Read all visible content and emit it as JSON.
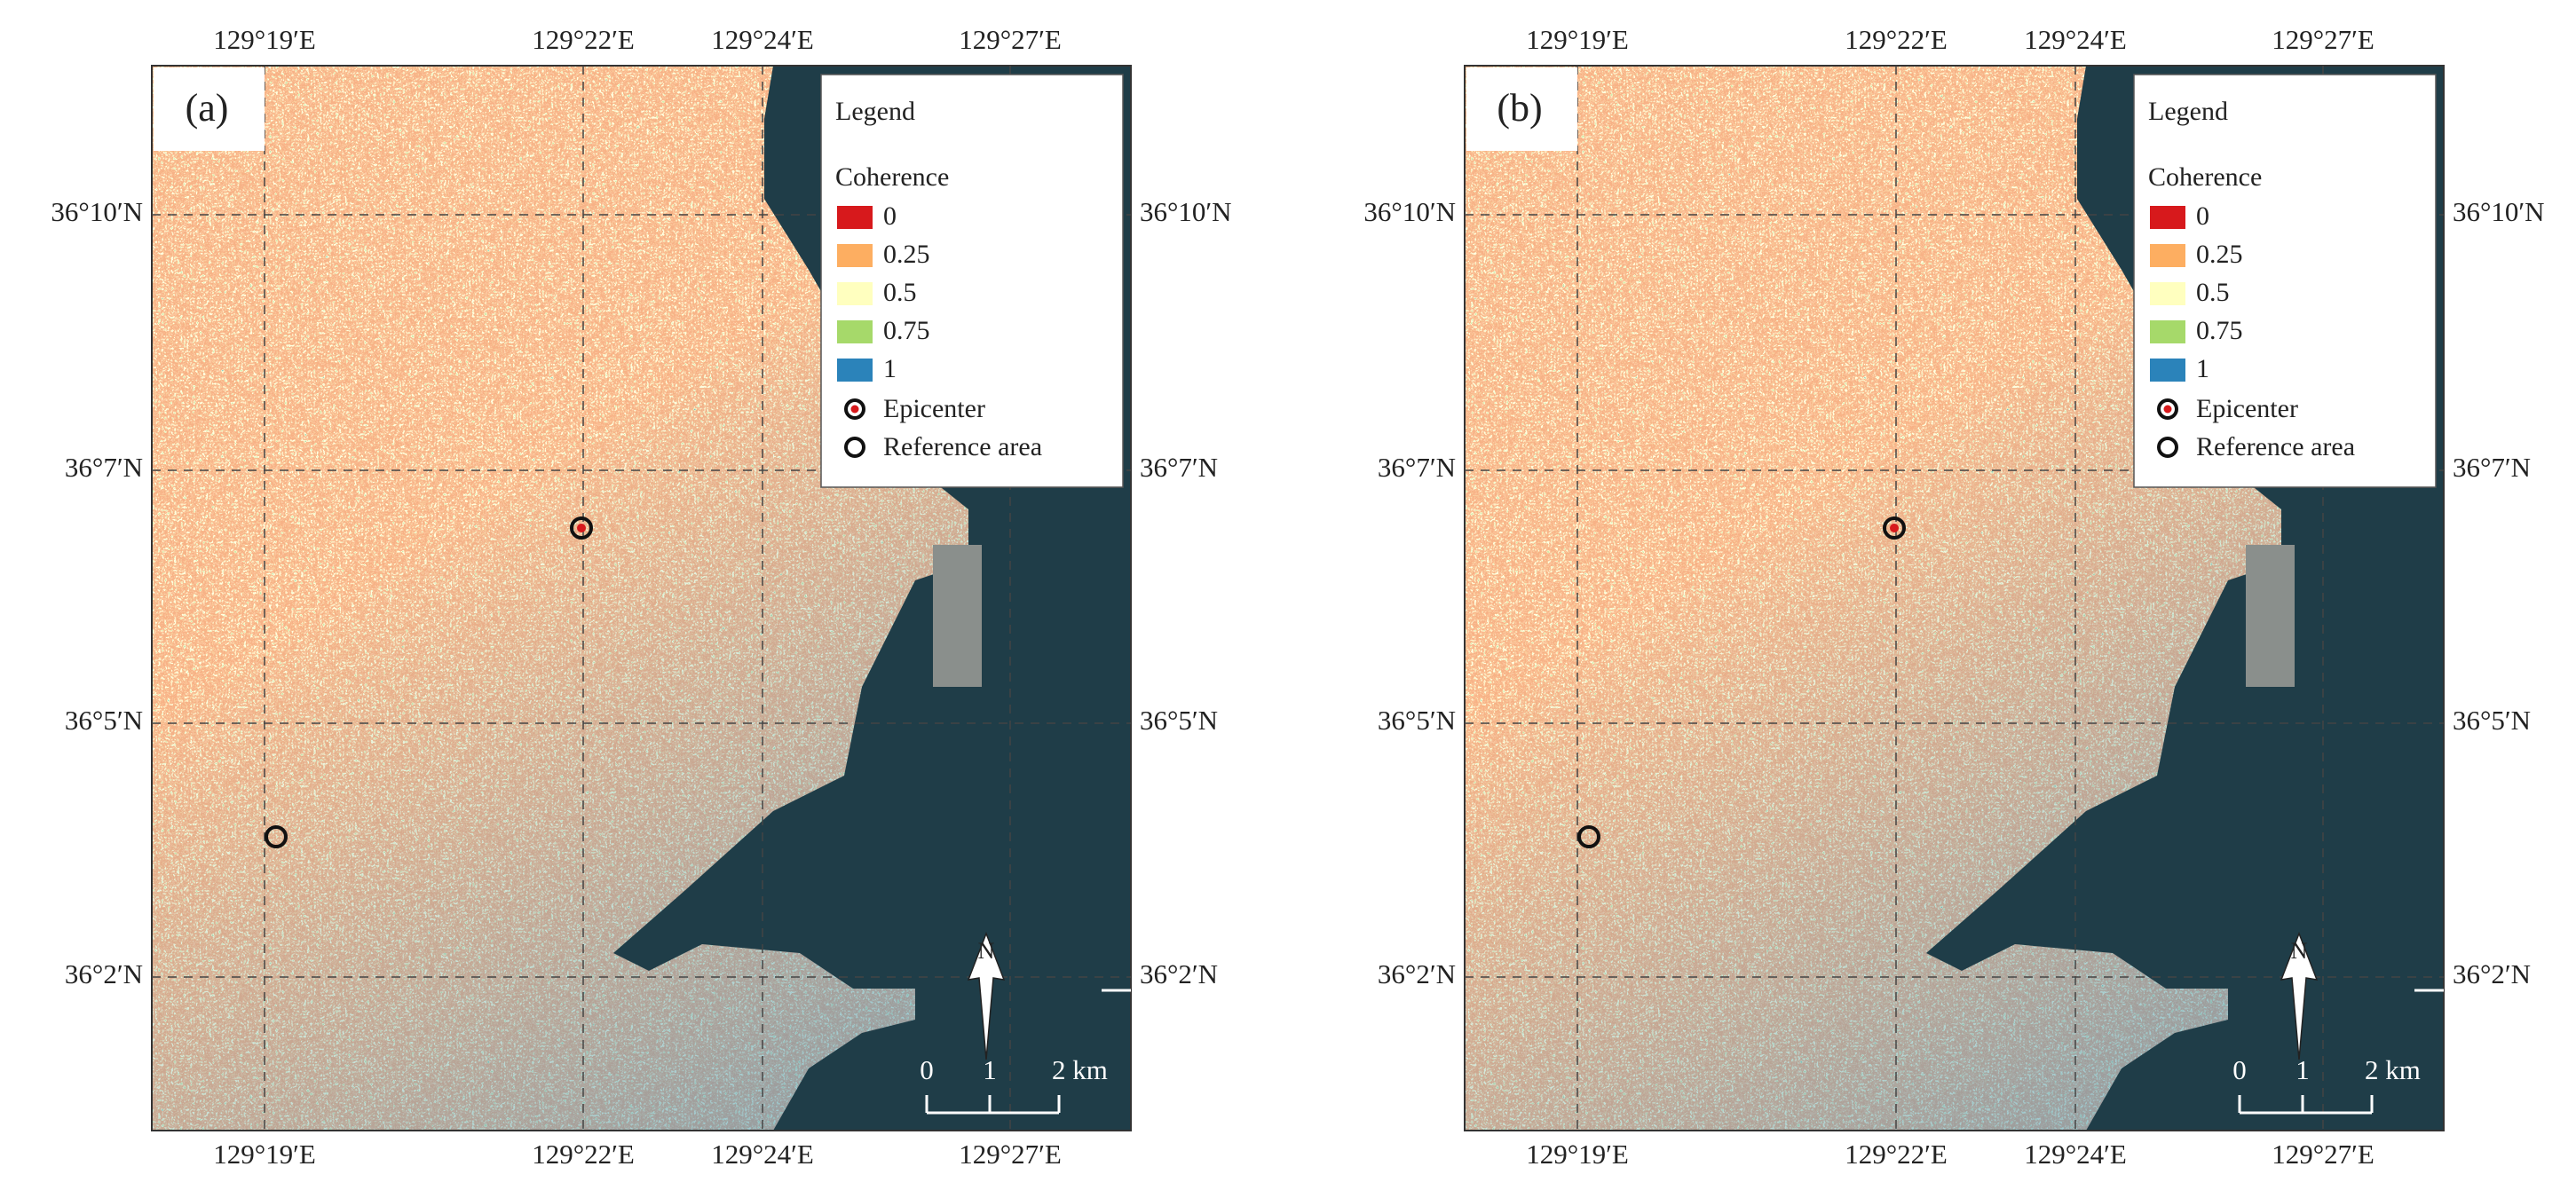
{
  "panels": [
    {
      "label": "(a)",
      "lon_labels_top": [
        "129°19′E",
        "129°22′E",
        "129°24′E",
        "129°27′E"
      ],
      "lon_labels_bottom": [
        "129°19′E",
        "129°22′E",
        "129°24′E",
        "129°27′E"
      ],
      "lat_labels_left": [
        "36°10′N",
        "36°7′N",
        "36°5′N",
        "36°2′N"
      ],
      "lat_labels_right": [
        "36°10′N",
        "36°7′N",
        "36°5′N",
        "36°2′N"
      ],
      "legend": {
        "title": "Legend",
        "subtitle": "Coherence",
        "classes": [
          {
            "label": "0",
            "color": "#d7191c"
          },
          {
            "label": "0.25",
            "color": "#fdae61"
          },
          {
            "label": "0.5",
            "color": "#ffffbf"
          },
          {
            "label": "0.75",
            "color": "#a6d96a"
          },
          {
            "label": "1",
            "color": "#2b83ba"
          }
        ],
        "epicenter": "Epicenter",
        "reference": "Reference area"
      },
      "north": "N",
      "scale_labels": [
        "0",
        "1",
        "2 km"
      ]
    },
    {
      "label": "(b)",
      "lon_labels_top": [
        "129°19′E",
        "129°22′E",
        "129°24′E",
        "129°27′E"
      ],
      "lon_labels_bottom": [
        "129°19′E",
        "129°22′E",
        "129°24′E",
        "129°27′E"
      ],
      "lat_labels_left": [
        "36°10′N",
        "36°7′N",
        "36°5′N",
        "36°2′N"
      ],
      "lat_labels_right": [
        "36°10′N",
        "36°7′N",
        "36°5′N",
        "36°2′N"
      ],
      "legend": {
        "title": "Legend",
        "subtitle": "Coherence",
        "classes": [
          {
            "label": "0",
            "color": "#d7191c"
          },
          {
            "label": "0.25",
            "color": "#fdae61"
          },
          {
            "label": "0.5",
            "color": "#ffffbf"
          },
          {
            "label": "0.75",
            "color": "#a6d96a"
          },
          {
            "label": "1",
            "color": "#2b83ba"
          }
        ],
        "epicenter": "Epicenter",
        "reference": "Reference area"
      },
      "north": "N",
      "scale_labels": [
        "0",
        "1",
        "2 km"
      ]
    }
  ]
}
